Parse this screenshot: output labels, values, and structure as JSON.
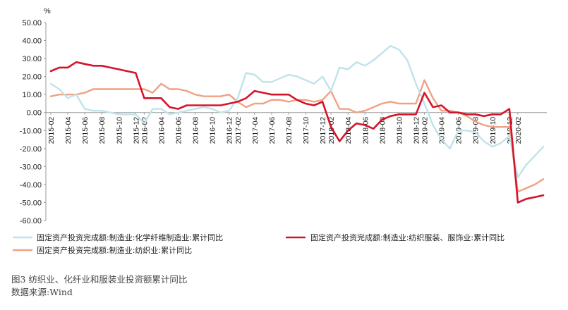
{
  "caption": "图3   纺织业、化纤业和服装业投资额累计同比",
  "source": "数据来源:Wind",
  "chart_data": {
    "type": "line",
    "unit_label": "%",
    "ylim": [
      -60,
      50
    ],
    "yticks": [
      50,
      40,
      30,
      20,
      10,
      0,
      -10,
      -20,
      -30,
      -40,
      -50,
      -60
    ],
    "ytick_labels": [
      "50.00",
      "40.00",
      "30.00",
      "20.00",
      "10.00",
      "0.00",
      "-10.00",
      "-20.00",
      "-30.00",
      "-40.00",
      "-50.00",
      "-60.00"
    ],
    "grid": false,
    "x": [
      "2015-02",
      "2015-03",
      "2015-04",
      "2015-05",
      "2015-06",
      "2015-07",
      "2015-08",
      "2015-09",
      "2015-10",
      "2015-11",
      "2015-12",
      "2016-02",
      "2016-03",
      "2016-04",
      "2016-05",
      "2016-06",
      "2016-07",
      "2016-08",
      "2016-09",
      "2016-10",
      "2016-11",
      "2016-12",
      "2017-02",
      "2017-03",
      "2017-04",
      "2017-05",
      "2017-06",
      "2017-07",
      "2017-08",
      "2017-09",
      "2017-10",
      "2017-11",
      "2017-12",
      "2018-02",
      "2018-03",
      "2018-04",
      "2018-05",
      "2018-06",
      "2018-07",
      "2018-08",
      "2018-09",
      "2018-10",
      "2018-11",
      "2018-12",
      "2019-02",
      "2019-03",
      "2019-04",
      "2019-05",
      "2019-06",
      "2019-07",
      "2019-08",
      "2019-09",
      "2019-10",
      "2019-11",
      "2019-12",
      "2020-02",
      "2020-03",
      "2020-04",
      "2020-05"
    ],
    "xtick_labels": [
      "2015-02",
      "2015-04",
      "2015-06",
      "2015-08",
      "2015-10",
      "2015-12",
      "2016-02",
      "2016-04",
      "2016-06",
      "2016-08",
      "2016-10",
      "2016-12",
      "2017-02",
      "2017-04",
      "2017-06",
      "2017-08",
      "2017-10",
      "2017-12",
      "2018-02",
      "2018-04",
      "2018-06",
      "2018-08",
      "2018-10",
      "2018-12",
      "2019-02",
      "2019-04",
      "2019-06",
      "2019-08",
      "2019-10",
      "2019-12",
      "2020-02"
    ],
    "legend_position": "bottom",
    "series": [
      {
        "name": "固定资产投资完成额:制造业:化学纤维制造业:累计同比",
        "color": "#bfe3ea",
        "values": [
          16,
          13,
          8,
          10,
          2,
          1,
          1,
          0,
          -1,
          -1,
          -1,
          -6,
          2,
          2,
          -1,
          0,
          1,
          2,
          3,
          2,
          0,
          1,
          8,
          22,
          21,
          17,
          17,
          19,
          21,
          20,
          18,
          16,
          20,
          12,
          25,
          24,
          28,
          26,
          29,
          33,
          37,
          35,
          29,
          16,
          5,
          -7,
          -15,
          -20,
          -10,
          -10,
          -11,
          -16,
          -19,
          -17,
          -13,
          -36,
          -29,
          -24,
          -19
        ]
      },
      {
        "name": "固定资产投资完成额:制造业:纺织服装、服饰业:累计同比",
        "color": "#d3152b",
        "values": [
          23,
          25,
          25,
          28,
          27,
          26,
          26,
          25,
          24,
          23,
          22,
          8,
          8,
          8,
          3,
          2,
          4,
          4,
          4,
          4,
          4,
          5,
          6,
          8,
          12,
          11,
          10,
          10,
          10,
          7,
          5,
          4,
          6,
          -8,
          -16,
          -10,
          -6,
          -7,
          -9,
          -4,
          -2,
          -1,
          -1,
          -1,
          11,
          3,
          4,
          0,
          0,
          -1,
          -1,
          -2,
          -1,
          -1,
          2,
          -50,
          -48,
          -47,
          -46
        ]
      },
      {
        "name": "固定资产投资完成额:制造业:纺织业:累计同比",
        "color": "#f0a183",
        "values": [
          9,
          10,
          10,
          10,
          11,
          13,
          13,
          13,
          13,
          13,
          13,
          13,
          11,
          16,
          13,
          13,
          12,
          10,
          9,
          9,
          9,
          10,
          6,
          3,
          5,
          5,
          7,
          7,
          6,
          7,
          7,
          6,
          7,
          12,
          2,
          2,
          0,
          1,
          3,
          5,
          6,
          5,
          5,
          5,
          18,
          8,
          1,
          1,
          0,
          -2,
          -5,
          -7,
          -8,
          -8,
          -8,
          -44,
          -42,
          -40,
          -37
        ]
      }
    ]
  }
}
